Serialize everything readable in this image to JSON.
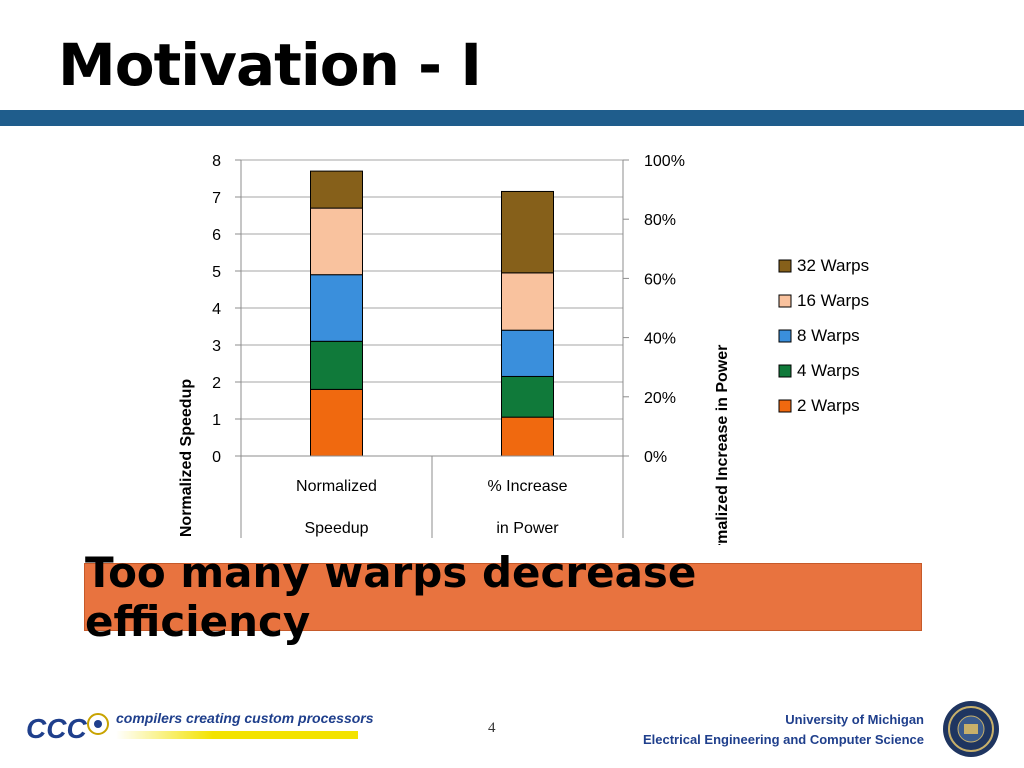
{
  "slide": {
    "title": "Motivation - I",
    "callout": "Too many warps decrease efficiency",
    "page_number": "4"
  },
  "footer": {
    "logo_text": "CCC",
    "tagline": "compilers creating custom processors",
    "university_line1": "University of Michigan",
    "university_line2": "Electrical Engineering and Computer Science"
  },
  "colors": {
    "band": "#1f5d8c",
    "callout_bg": "#e8733f",
    "footer_text": "#1f3f8c"
  },
  "chart_data": {
    "type": "bar",
    "stacked": true,
    "categories": [
      "Normalized Speedup",
      "% Increase in Power"
    ],
    "category_lines": [
      [
        "Normalized",
        "Speedup"
      ],
      [
        "% Increase",
        "in Power"
      ]
    ],
    "series": [
      {
        "name": "2 Warps",
        "color": "#f0690f",
        "values": [
          1.8,
          1.05
        ]
      },
      {
        "name": "4 Warps",
        "color": "#107a3a",
        "values": [
          1.3,
          1.1
        ]
      },
      {
        "name": "8 Warps",
        "color": "#3a8fdc",
        "values": [
          1.8,
          1.25
        ]
      },
      {
        "name": "16 Warps",
        "color": "#f9c29e",
        "values": [
          1.8,
          1.55
        ]
      },
      {
        "name": "32 Warps",
        "color": "#86601a",
        "values": [
          1.0,
          2.2
        ]
      }
    ],
    "ylabel": "Normalized Speedup",
    "ylabel2": "Normalized Increase in Power",
    "ylim": [
      0,
      8
    ],
    "yticks": [
      "0",
      "1",
      "2",
      "3",
      "4",
      "5",
      "6",
      "7",
      "8"
    ],
    "y2ticks": [
      "0%",
      "20%",
      "40%",
      "60%",
      "80%",
      "100%"
    ],
    "grid": true,
    "legend_position": "right"
  }
}
